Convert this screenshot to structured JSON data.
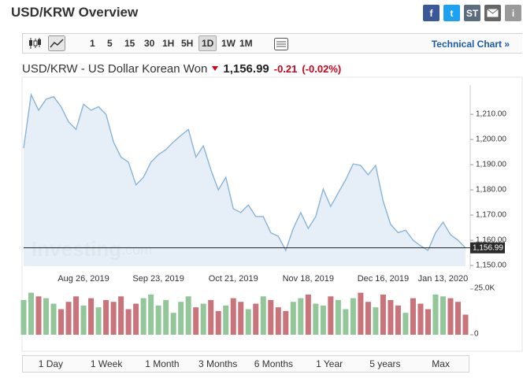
{
  "header": {
    "title": "USD/KRW Overview",
    "social": [
      "f",
      "t",
      "ST",
      "i"
    ]
  },
  "toolbar": {
    "intervals": [
      "1",
      "5",
      "15",
      "30",
      "1H",
      "5H",
      "1D",
      "1W",
      "1M"
    ],
    "active": "1D",
    "technical_link": "Technical Chart »"
  },
  "quote": {
    "name": "USD/KRW - US Dollar Korean Won",
    "change": "-0.21",
    "change_percent": "(-0.02%)"
  },
  "watermark": {
    "brand": "Investing",
    "suffix": ".com"
  },
  "chart_data": [
    {
      "type": "line",
      "color": "#8ab4d9",
      "area_color": "#e3edf6",
      "categories": [
        null,
        null,
        null,
        null,
        null,
        null,
        null,
        null,
        "Aug 26, 2019",
        null,
        null,
        null,
        null,
        null,
        null,
        null,
        null,
        null,
        "Sep 23, 2019",
        null,
        null,
        null,
        null,
        null,
        null,
        null,
        null,
        null,
        "Oct 21, 2019",
        null,
        null,
        null,
        null,
        null,
        null,
        null,
        null,
        null,
        "Nov 18, 2019",
        null,
        null,
        null,
        null,
        null,
        null,
        null,
        null,
        null,
        "Dec 16, 2019",
        null,
        null,
        null,
        null,
        null,
        null,
        null,
        "Jan 13, 2020",
        null,
        null,
        null
      ],
      "values": [
        1196.6,
        1217.8,
        1211.6,
        1216,
        1217,
        1213,
        1207,
        1204,
        1214,
        1211.6,
        1213,
        1210,
        1199,
        1193,
        1191,
        1182,
        1185,
        1191,
        1194,
        1196,
        1199,
        1201.6,
        1204,
        1193,
        1197.5,
        1188,
        1180,
        1185,
        1172.5,
        1171,
        1174,
        1169.4,
        1169.4,
        1163,
        1161.6,
        1156,
        1164.7,
        1171,
        1164.7,
        1169.4,
        1180.3,
        1173.4,
        1178.8,
        1184,
        1190.3,
        1189.7,
        1186,
        1189.7,
        1175.6,
        1166.3,
        1163,
        1164,
        1160,
        1157.8,
        1156,
        1163,
        1167.2,
        1162.2,
        1160,
        1156.99
      ],
      "ylim": [
        1149.7,
        1221.6
      ],
      "yticks": [
        {
          "value": 1150,
          "label": "1,150.00"
        },
        {
          "value": 1160,
          "label": "1,160.00"
        },
        {
          "value": 1170,
          "label": "1,170.00"
        },
        {
          "value": 1180,
          "label": "1,180.00"
        },
        {
          "value": 1190,
          "label": "1,190.00"
        },
        {
          "value": 1200,
          "label": "1,200.00"
        },
        {
          "value": 1210,
          "label": "1,210.00"
        }
      ],
      "current_price": {
        "value": 1156.99,
        "label": "1,156.99"
      }
    },
    {
      "type": "bar",
      "up_color": "#93c79a",
      "down_color": "#c9737a",
      "values": [
        19000,
        23000,
        21000,
        20000,
        17000,
        14000,
        18000,
        21000,
        16000,
        20000,
        15000,
        19000,
        18000,
        21000,
        14000,
        17000,
        20000,
        22000,
        16000,
        19000,
        12000,
        18000,
        21000,
        15000,
        17000,
        19000,
        13000,
        16000,
        20000,
        18000,
        14000,
        17000,
        21000,
        19000,
        15000,
        13000,
        18000,
        20000,
        22000,
        17000,
        16000,
        21000,
        19000,
        14000,
        20000,
        23000,
        18000,
        15000,
        22000,
        19000,
        16000,
        12000,
        20000,
        17000,
        14000,
        22000,
        21000,
        20000,
        18000,
        11000
      ],
      "ylim": [
        0,
        25000
      ],
      "yticks": [
        0,
        {
          "value": 25000,
          "label": "25.0K"
        }
      ]
    }
  ],
  "ranges": [
    "1 Day",
    "1 Week",
    "1 Month",
    "3 Months",
    "6 Months",
    "1 Year",
    "5 years",
    "Max"
  ]
}
